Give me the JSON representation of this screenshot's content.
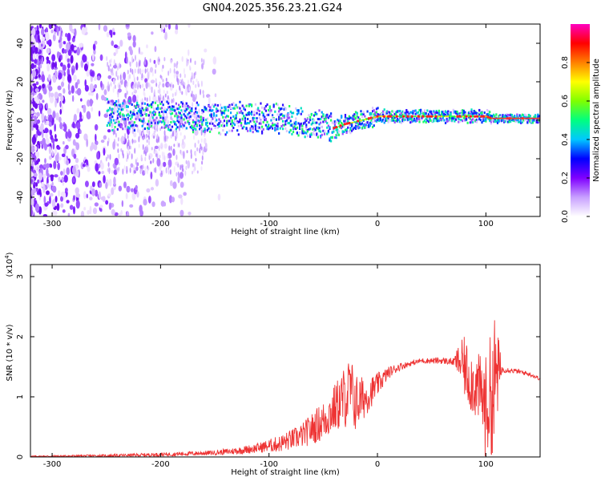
{
  "title": "GN04.2025.356.23.21.G24",
  "chart_data": [
    {
      "type": "heatmap",
      "name": "spectrogram",
      "xlabel": "Height of straight line (km)",
      "ylabel": "Frequency (Hz)",
      "xlim": [
        -320,
        150
      ],
      "ylim": [
        -50,
        50
      ],
      "xticks": [
        -300,
        -200,
        -100,
        0,
        100
      ],
      "yticks": [
        -40,
        -20,
        0,
        20,
        40
      ],
      "ridge": {
        "description": "Dominant frequency line vs height",
        "x": [
          -250,
          -200,
          -150,
          -100,
          -70,
          -50,
          -40,
          -30,
          0,
          50,
          100,
          105,
          150
        ],
        "y": [
          3,
          2,
          1,
          1,
          -1,
          -2,
          -4,
          -2,
          2,
          2,
          2,
          1,
          1
        ]
      },
      "colorbar": {
        "label": "Normalized spectral amplitude",
        "range": [
          0,
          1
        ],
        "ticks": [
          "0.0",
          "0.2",
          "0.4",
          "0.6",
          "0.8"
        ],
        "colors": [
          "#ffffff",
          "#c8a0ff",
          "#8000ff",
          "#0000ff",
          "#00c8ff",
          "#00ff80",
          "#80ff00",
          "#ffff00",
          "#ff8000",
          "#ff0000",
          "#ff00c0"
        ]
      }
    },
    {
      "type": "line",
      "name": "snr",
      "xlabel": "Height of straight line (km)",
      "ylabel": "SNR (10 * v/v)",
      "ylabel_multiplier": "(x10",
      "ylabel_exponent": "4",
      "ylabel_multiplier_close": ")",
      "xlim": [
        -320,
        150
      ],
      "ylim": [
        0,
        3.2
      ],
      "xticks": [
        -300,
        -200,
        -100,
        0,
        100
      ],
      "yticks": [
        0,
        1,
        2,
        3
      ],
      "series": [
        {
          "name": "SNR",
          "color": "#ee3333",
          "envelope_x": [
            -320,
            -250,
            -200,
            -150,
            -130,
            -110,
            -90,
            -70,
            -50,
            -40,
            -30,
            -25,
            -20,
            -10,
            0,
            10,
            20,
            30,
            40,
            50,
            60,
            70,
            75,
            80,
            85,
            90,
            95,
            100,
            103,
            106,
            108,
            110,
            115,
            120,
            130,
            140,
            150
          ],
          "envelope_y": [
            0.01,
            0.02,
            0.04,
            0.07,
            0.1,
            0.15,
            0.22,
            0.35,
            0.6,
            0.8,
            1.0,
            1.1,
            0.9,
            1.0,
            1.2,
            1.4,
            1.5,
            1.55,
            1.6,
            1.6,
            1.6,
            1.58,
            1.6,
            1.5,
            1.3,
            1.2,
            1.1,
            0.8,
            1.0,
            0.9,
            1.2,
            1.4,
            1.45,
            1.45,
            1.42,
            1.38,
            1.3
          ],
          "noise_x": [
            -320,
            -150,
            -110,
            -70,
            -40,
            -25,
            -10,
            10,
            30,
            70,
            80,
            95,
            100,
            108,
            115,
            150
          ],
          "noise_amp": [
            0.01,
            0.04,
            0.08,
            0.2,
            0.4,
            0.6,
            0.3,
            0.1,
            0.04,
            0.06,
            0.5,
            0.6,
            0.9,
            1.2,
            0.05,
            0.03
          ]
        }
      ]
    }
  ]
}
